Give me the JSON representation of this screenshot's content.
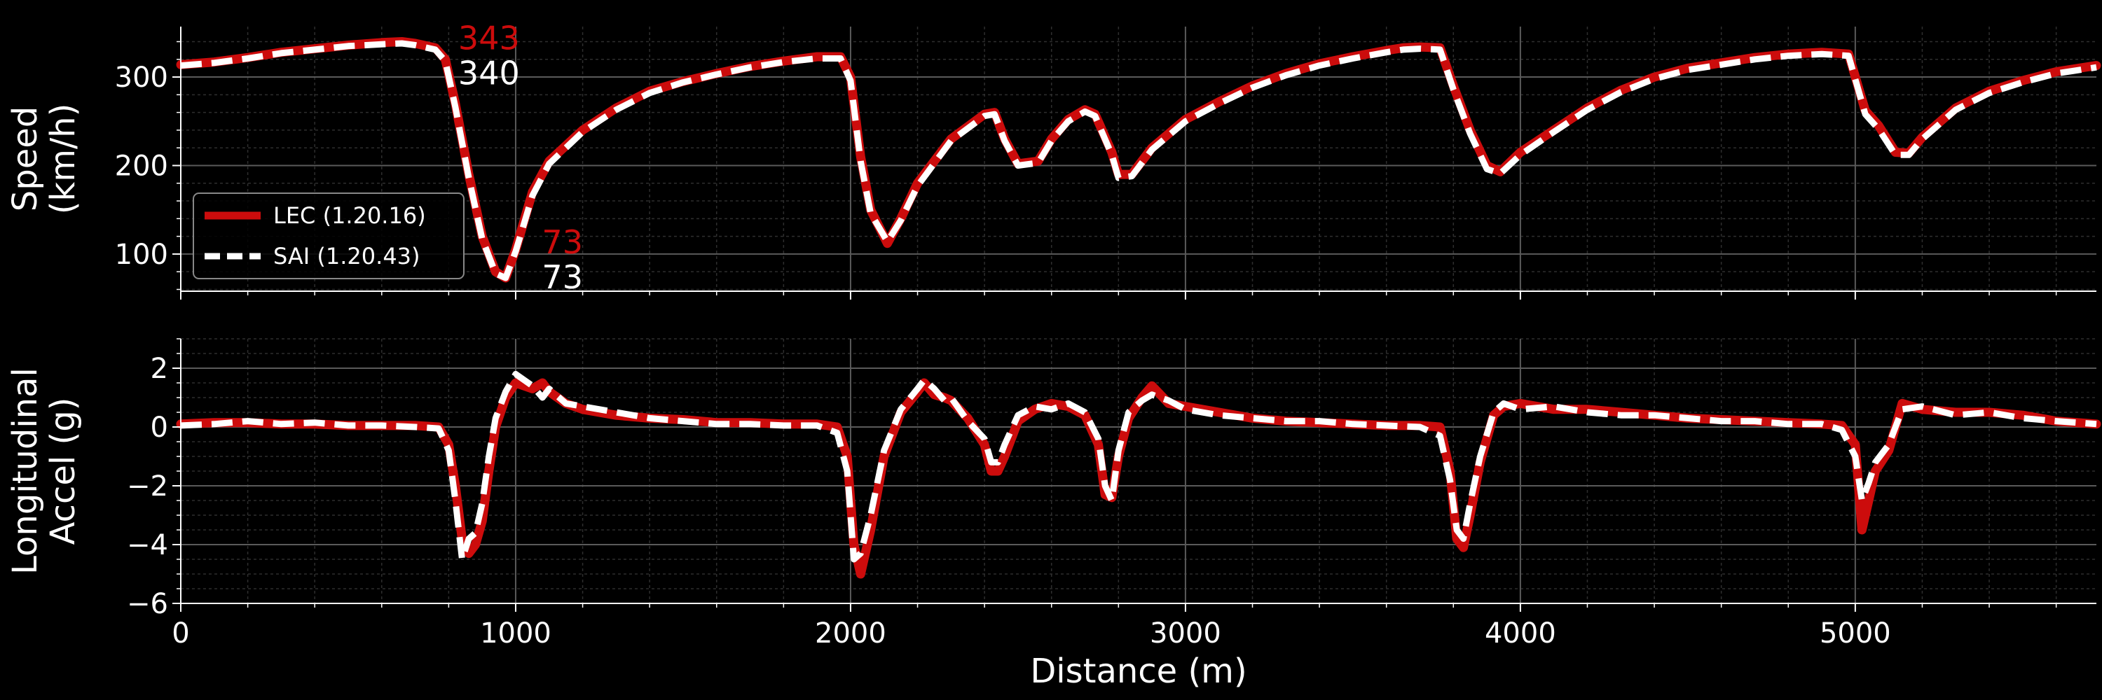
{
  "chart_data": {
    "type": "line",
    "shared_x": {
      "label": "Distance (m)",
      "xlim": [
        0,
        5720
      ],
      "ticks": [
        0,
        1000,
        2000,
        3000,
        4000,
        5000
      ],
      "tick_labels": [
        "0",
        "1000",
        "2000",
        "3000",
        "4000",
        "5000"
      ]
    },
    "colors": {
      "LEC": "#cc0c0c",
      "SAI": "#ffffff",
      "background": "#000000",
      "grid_major": "#5a5a5a",
      "grid_minor": "#2e2e2e"
    },
    "legend": {
      "placement": "left",
      "entries": [
        {
          "key": "LEC",
          "label": "LEC (1.20.16)"
        },
        {
          "key": "SAI",
          "label": "SAI (1.20.43)"
        }
      ]
    },
    "panels": [
      {
        "id": "speed",
        "ylabel_lines": [
          "Speed",
          "(km/h)"
        ],
        "ylim": [
          58,
          357
        ],
        "yticks": [
          100,
          200,
          300
        ],
        "ytick_labels": [
          "100",
          "200",
          "300"
        ],
        "grid": true,
        "series": [
          {
            "name": "LEC (1.20.16)",
            "style": "solid",
            "x": [
              0,
              100,
              200,
              300,
              400,
              500,
              600,
              660,
              700,
              760,
              790,
              820,
              860,
              900,
              940,
              970,
              1000,
              1050,
              1100,
              1200,
              1300,
              1400,
              1500,
              1600,
              1700,
              1800,
              1900,
              1970,
              2000,
              2030,
              2060,
              2110,
              2150,
              2200,
              2300,
              2400,
              2430,
              2460,
              2500,
              2560,
              2600,
              2650,
              2700,
              2730,
              2780,
              2800,
              2840,
              2900,
              3000,
              3100,
              3200,
              3300,
              3400,
              3500,
              3600,
              3650,
              3700,
              3760,
              3800,
              3850,
              3900,
              3940,
              4000,
              4100,
              4200,
              4300,
              4400,
              4500,
              4600,
              4700,
              4800,
              4900,
              4980,
              5030,
              5070,
              5120,
              5160,
              5200,
              5300,
              5400,
              5500,
              5600,
              5720
            ],
            "y": [
              314,
              317,
              322,
              328,
              332,
              336,
              339,
              340,
              338,
              333,
              320,
              270,
              190,
              120,
              80,
              73,
              105,
              170,
              205,
              240,
              265,
              284,
              295,
              304,
              312,
              318,
              323,
              323,
              300,
              210,
              150,
              112,
              140,
              180,
              230,
              258,
              260,
              230,
              202,
              205,
              230,
              252,
              263,
              258,
              215,
              190,
              190,
              220,
              252,
              272,
              290,
              304,
              315,
              323,
              330,
              333,
              334,
              333,
              290,
              240,
              200,
              193,
              215,
              240,
              265,
              285,
              300,
              310,
              316,
              322,
              326,
              328,
              326,
              262,
              245,
              215,
              214,
              232,
              265,
              284,
              296,
              306,
              313
            ]
          },
          {
            "name": "SAI (1.20.43)",
            "style": "dashed",
            "x": [
              0,
              100,
              200,
              300,
              400,
              500,
              600,
              660,
              700,
              760,
              790,
              820,
              860,
              900,
              940,
              970,
              1000,
              1050,
              1100,
              1200,
              1300,
              1400,
              1500,
              1600,
              1700,
              1800,
              1900,
              1970,
              2000,
              2030,
              2060,
              2110,
              2150,
              2200,
              2300,
              2400,
              2430,
              2460,
              2500,
              2560,
              2600,
              2650,
              2700,
              2730,
              2780,
              2800,
              2840,
              2900,
              3000,
              3100,
              3200,
              3300,
              3400,
              3500,
              3600,
              3650,
              3700,
              3760,
              3800,
              3850,
              3900,
              3940,
              4000,
              4100,
              4200,
              4300,
              4400,
              4500,
              4600,
              4700,
              4800,
              4900,
              4980,
              5030,
              5070,
              5120,
              5160,
              5200,
              5300,
              5400,
              5500,
              5600,
              5720
            ],
            "y": [
              313,
              316,
              321,
              327,
              331,
              335,
              337,
              338,
              336,
              331,
              318,
              266,
              186,
              117,
              78,
              73,
              103,
              166,
              202,
              238,
              263,
              282,
              294,
              303,
              311,
              317,
              321,
              321,
              296,
              205,
              146,
              114,
              138,
              177,
              228,
              256,
              258,
              228,
              200,
              203,
              228,
              250,
              261,
              256,
              212,
              186,
              188,
              218,
              250,
              270,
              288,
              302,
              313,
              321,
              328,
              331,
              332,
              331,
              286,
              236,
              196,
              191,
              212,
              238,
              263,
              283,
              298,
              308,
              314,
              320,
              324,
              326,
              324,
              258,
              241,
              212,
              212,
              230,
              263,
              282,
              294,
              304,
              311
            ]
          }
        ],
        "annotations": [
          {
            "text": "343",
            "x": 820,
            "y": 343,
            "color_key": "LEC"
          },
          {
            "text": "340",
            "x": 820,
            "y": 343,
            "color_key": "SAI"
          },
          {
            "text": "73",
            "x": 1070,
            "y": 73,
            "color_key": "LEC"
          },
          {
            "text": "73",
            "x": 1070,
            "y": 73,
            "color_key": "SAI"
          }
        ]
      },
      {
        "id": "accel",
        "ylabel_lines": [
          "Longitudinal",
          "Accel (g)"
        ],
        "ylim": [
          -6,
          3
        ],
        "yticks": [
          -6,
          -4,
          -2,
          0,
          2
        ],
        "ytick_labels": [
          "−6",
          "−4",
          "−2",
          "0",
          "2"
        ],
        "grid": true,
        "series": [
          {
            "name": "LEC (1.20.16)",
            "style": "solid",
            "x": [
              0,
              100,
              200,
              300,
              400,
              500,
              600,
              700,
              770,
              800,
              820,
              840,
              860,
              880,
              900,
              920,
              940,
              970,
              1000,
              1050,
              1080,
              1100,
              1150,
              1200,
              1300,
              1400,
              1500,
              1600,
              1700,
              1800,
              1900,
              1960,
              1990,
              2010,
              2030,
              2060,
              2100,
              2150,
              2200,
              2220,
              2250,
              2280,
              2300,
              2350,
              2400,
              2420,
              2440,
              2460,
              2500,
              2550,
              2600,
              2650,
              2700,
              2740,
              2760,
              2780,
              2800,
              2830,
              2870,
              2900,
              2950,
              3000,
              3100,
              3200,
              3300,
              3400,
              3500,
              3600,
              3700,
              3760,
              3790,
              3810,
              3830,
              3850,
              3880,
              3920,
              3950,
              4000,
              4100,
              4200,
              4300,
              4400,
              4500,
              4600,
              4700,
              4800,
              4900,
              4960,
              5000,
              5020,
              5040,
              5060,
              5100,
              5140,
              5200,
              5300,
              5400,
              5500,
              5600,
              5720
            ],
            "y": [
              0.1,
              0.15,
              0.15,
              0.1,
              0.1,
              0.05,
              0.05,
              0.05,
              0.0,
              -0.6,
              -2.0,
              -3.8,
              -4.3,
              -4.0,
              -3.2,
              -1.5,
              0.0,
              1.0,
              1.5,
              1.3,
              1.5,
              1.2,
              0.8,
              0.6,
              0.4,
              0.3,
              0.25,
              0.15,
              0.15,
              0.1,
              0.1,
              0.0,
              -1.0,
              -4.0,
              -5.0,
              -3.5,
              -1.0,
              0.5,
              1.2,
              1.5,
              1.1,
              1.0,
              0.9,
              0.3,
              -0.6,
              -1.5,
              -1.5,
              -1.0,
              0.2,
              0.6,
              0.8,
              0.7,
              0.4,
              -0.6,
              -2.3,
              -2.4,
              -1.0,
              0.3,
              1.0,
              1.4,
              0.8,
              0.7,
              0.5,
              0.3,
              0.2,
              0.15,
              0.1,
              0.05,
              0.05,
              0.0,
              -1.5,
              -3.8,
              -4.1,
              -3.0,
              -1.2,
              0.4,
              0.7,
              0.8,
              0.6,
              0.6,
              0.5,
              0.4,
              0.3,
              0.25,
              0.2,
              0.15,
              0.1,
              0.05,
              -0.6,
              -3.5,
              -2.5,
              -1.5,
              -0.8,
              0.8,
              0.6,
              0.5,
              0.5,
              0.4,
              0.2,
              0.1
            ]
          },
          {
            "name": "SAI (1.20.43)",
            "style": "dashed",
            "x": [
              0,
              100,
              200,
              300,
              400,
              500,
              600,
              700,
              770,
              800,
              820,
              840,
              860,
              880,
              900,
              920,
              940,
              970,
              1000,
              1050,
              1080,
              1100,
              1150,
              1200,
              1300,
              1400,
              1500,
              1600,
              1700,
              1800,
              1900,
              1960,
              1990,
              2010,
              2030,
              2060,
              2100,
              2150,
              2200,
              2220,
              2250,
              2280,
              2300,
              2350,
              2400,
              2420,
              2440,
              2460,
              2500,
              2550,
              2600,
              2650,
              2700,
              2740,
              2760,
              2780,
              2800,
              2830,
              2870,
              2900,
              2950,
              3000,
              3100,
              3200,
              3300,
              3400,
              3500,
              3600,
              3700,
              3760,
              3790,
              3810,
              3830,
              3850,
              3880,
              3920,
              3950,
              4000,
              4100,
              4200,
              4300,
              4400,
              4500,
              4600,
              4700,
              4800,
              4900,
              4960,
              5000,
              5020,
              5040,
              5060,
              5100,
              5140,
              5200,
              5300,
              5400,
              5500,
              5600,
              5720
            ],
            "y": [
              0.05,
              0.1,
              0.2,
              0.1,
              0.15,
              0.05,
              0.05,
              0.0,
              -0.05,
              -0.8,
              -2.5,
              -4.5,
              -3.8,
              -3.6,
              -2.6,
              -1.0,
              0.3,
              1.2,
              1.8,
              1.4,
              1.0,
              1.3,
              0.8,
              0.7,
              0.5,
              0.3,
              0.2,
              0.1,
              0.1,
              0.05,
              0.05,
              -0.2,
              -1.5,
              -4.5,
              -4.3,
              -3.0,
              -0.8,
              0.6,
              1.3,
              1.6,
              1.3,
              0.9,
              1.0,
              0.2,
              -0.4,
              -1.2,
              -1.2,
              -0.6,
              0.4,
              0.7,
              0.6,
              0.8,
              0.5,
              -0.4,
              -2.0,
              -2.5,
              -0.8,
              0.5,
              0.9,
              1.1,
              0.9,
              0.6,
              0.4,
              0.3,
              0.2,
              0.2,
              0.1,
              0.05,
              0.0,
              -0.3,
              -1.8,
              -3.5,
              -3.8,
              -2.6,
              -1.0,
              0.5,
              0.8,
              0.6,
              0.7,
              0.5,
              0.4,
              0.4,
              0.3,
              0.2,
              0.2,
              0.1,
              0.1,
              -0.1,
              -1.0,
              -2.5,
              -1.9,
              -1.2,
              -0.6,
              0.6,
              0.7,
              0.4,
              0.5,
              0.3,
              0.2,
              0.1
            ]
          }
        ],
        "annotations": []
      }
    ]
  }
}
